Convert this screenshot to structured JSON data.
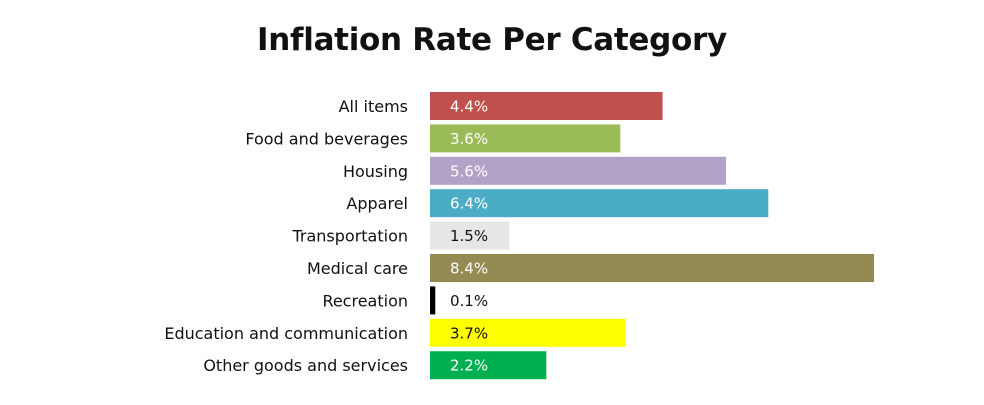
{
  "chart_data": {
    "type": "bar",
    "orientation": "horizontal",
    "title": "Inflation Rate Per Category",
    "categories": [
      "All items",
      "Food and beverages",
      "Housing",
      "Apparel",
      "Transportation",
      "Medical care",
      "Recreation",
      "Education and communication",
      "Other goods and services"
    ],
    "values": [
      4.4,
      3.6,
      5.6,
      6.4,
      1.5,
      8.4,
      0.1,
      3.7,
      2.2
    ],
    "data_labels": [
      "4.4%",
      "3.6%",
      "5.6%",
      "6.4%",
      "1.5%",
      "8.4%",
      "0.1%",
      "3.7%",
      "2.2%"
    ],
    "colors": [
      "#c0504d",
      "#9bbb59",
      "#b3a2c7",
      "#4bacc6",
      "#e6e6e6",
      "#948a54",
      "#000000",
      "#ffff00",
      "#00b050"
    ],
    "label_colors": [
      "#ffffff",
      "#ffffff",
      "#ffffff",
      "#ffffff",
      "#111111",
      "#ffffff",
      "#111111",
      "#111111",
      "#ffffff"
    ],
    "xlim": [
      0,
      8.4
    ],
    "grid": false,
    "legend": "none"
  }
}
